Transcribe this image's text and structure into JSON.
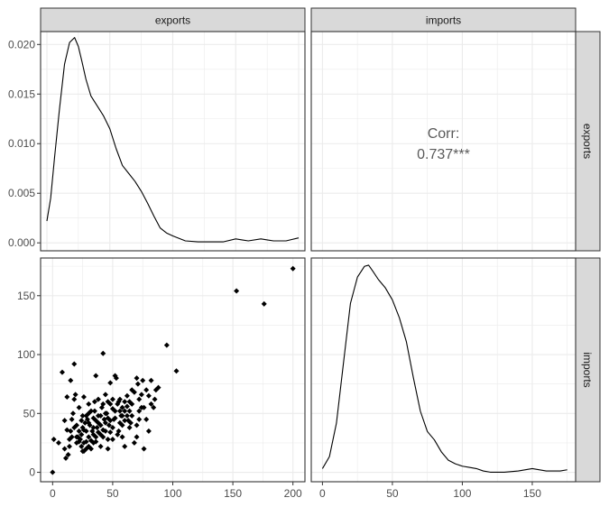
{
  "colors": {
    "strip_fill": "#d9d9d9",
    "panel_border": "#333333",
    "grid": "#ebebeb",
    "line": "#000000",
    "point": "#000000",
    "corr_text": "#595959"
  },
  "chart_data": {
    "type": "scatter",
    "title": "",
    "layout": "2x2 pairs matrix",
    "columns": [
      "exports",
      "imports"
    ],
    "rows": [
      "exports",
      "imports"
    ],
    "grid": true,
    "panels": {
      "exports_density": {
        "type": "line",
        "xlim": [
          -5,
          205
        ],
        "ylim": [
          -0.0008,
          0.0213
        ],
        "x_ticks": [
          0,
          50,
          100,
          150,
          200
        ],
        "y_ticks": [
          0,
          0.005,
          0.01,
          0.015,
          0.02
        ],
        "y_tick_labels": [
          "0.000",
          "0.005",
          "0.010",
          "0.015",
          "0.020"
        ],
        "x": [
          0,
          3,
          6,
          10,
          14,
          18,
          22,
          25,
          28,
          31,
          35,
          40,
          45,
          50,
          55,
          60,
          65,
          70,
          75,
          80,
          85,
          90,
          95,
          100,
          110,
          120,
          130,
          140,
          150,
          155,
          160,
          170,
          175,
          180,
          190,
          200
        ],
        "y": [
          0.0022,
          0.0045,
          0.0085,
          0.0135,
          0.018,
          0.0202,
          0.0207,
          0.0198,
          0.0182,
          0.0165,
          0.0148,
          0.0138,
          0.0128,
          0.0115,
          0.0095,
          0.0078,
          0.007,
          0.0062,
          0.0052,
          0.004,
          0.0027,
          0.0015,
          0.001,
          0.0007,
          0.0002,
          0.0001,
          0.0001,
          0.0001,
          0.0004,
          0.0003,
          0.0002,
          0.0004,
          0.0003,
          0.0002,
          0.0002,
          0.0005
        ]
      },
      "corr": {
        "label": "Corr:",
        "value": "0.737***"
      },
      "scatter": {
        "type": "scatter",
        "xlim": [
          -10,
          210
        ],
        "ylim": [
          -8,
          182
        ],
        "x_ticks": [
          0,
          50,
          100,
          150,
          200
        ],
        "y_ticks": [
          0,
          50,
          100,
          150
        ],
        "points": [
          [
            0,
            0
          ],
          [
            1,
            28
          ],
          [
            5,
            25
          ],
          [
            10,
            20
          ],
          [
            11,
            12
          ],
          [
            13,
            15
          ],
          [
            14,
            22
          ],
          [
            15,
            35
          ],
          [
            16,
            45
          ],
          [
            17,
            50
          ],
          [
            18,
            62
          ],
          [
            19,
            66
          ],
          [
            20,
            25
          ],
          [
            20,
            40
          ],
          [
            21,
            30
          ],
          [
            22,
            35
          ],
          [
            22,
            55
          ],
          [
            23,
            28
          ],
          [
            24,
            32
          ],
          [
            25,
            18
          ],
          [
            25,
            38
          ],
          [
            25,
            48
          ],
          [
            26,
            25
          ],
          [
            27,
            42
          ],
          [
            28,
            20
          ],
          [
            28,
            35
          ],
          [
            29,
            45
          ],
          [
            30,
            30
          ],
          [
            30,
            50
          ],
          [
            31,
            40
          ],
          [
            32,
            27
          ],
          [
            33,
            35
          ],
          [
            34,
            46
          ],
          [
            35,
            52
          ],
          [
            35,
            60
          ],
          [
            36,
            30
          ],
          [
            37,
            38
          ],
          [
            38,
            42
          ],
          [
            38,
            62
          ],
          [
            40,
            48
          ],
          [
            41,
            55
          ],
          [
            42,
            30
          ],
          [
            42,
            101
          ],
          [
            43,
            45
          ],
          [
            44,
            35
          ],
          [
            45,
            50
          ],
          [
            46,
            28
          ],
          [
            47,
            40
          ],
          [
            48,
            58
          ],
          [
            50,
            38
          ],
          [
            50,
            62
          ],
          [
            51,
            45
          ],
          [
            52,
            52
          ],
          [
            53,
            80
          ],
          [
            55,
            35
          ],
          [
            55,
            60
          ],
          [
            57,
            48
          ],
          [
            58,
            55
          ],
          [
            60,
            22
          ],
          [
            60,
            52
          ],
          [
            62,
            65
          ],
          [
            63,
            44
          ],
          [
            65,
            42
          ],
          [
            66,
            58
          ],
          [
            68,
            68
          ],
          [
            70,
            30
          ],
          [
            71,
            75
          ],
          [
            72,
            62
          ],
          [
            75,
            78
          ],
          [
            76,
            55
          ],
          [
            78,
            70
          ],
          [
            80,
            65
          ],
          [
            82,
            58
          ],
          [
            85,
            62
          ],
          [
            88,
            72
          ],
          [
            18,
            92
          ],
          [
            15,
            78
          ],
          [
            8,
            85
          ],
          [
            12,
            64
          ],
          [
            26,
            64
          ],
          [
            30,
            58
          ],
          [
            34,
            25
          ],
          [
            36,
            82
          ],
          [
            40,
            22
          ],
          [
            44,
            66
          ],
          [
            46,
            20
          ],
          [
            48,
            76
          ],
          [
            52,
            82
          ],
          [
            56,
            42
          ],
          [
            58,
            30
          ],
          [
            62,
            48
          ],
          [
            64,
            38
          ],
          [
            66,
            48
          ],
          [
            68,
            25
          ],
          [
            70,
            40
          ],
          [
            72,
            45
          ],
          [
            74,
            55
          ],
          [
            76,
            20
          ],
          [
            78,
            45
          ],
          [
            80,
            35
          ],
          [
            84,
            55
          ],
          [
            86,
            70
          ],
          [
            95,
            108
          ],
          [
            103,
            86
          ],
          [
            153,
            154
          ],
          [
            176,
            143
          ],
          [
            200,
            173
          ],
          [
            20,
            30
          ],
          [
            22,
            26
          ],
          [
            24,
            44
          ],
          [
            26,
            36
          ],
          [
            28,
            48
          ],
          [
            30,
            42
          ],
          [
            32,
            52
          ],
          [
            34,
            38
          ],
          [
            36,
            44
          ],
          [
            38,
            34
          ],
          [
            40,
            40
          ],
          [
            42,
            58
          ],
          [
            44,
            50
          ],
          [
            46,
            60
          ],
          [
            48,
            44
          ],
          [
            50,
            54
          ],
          [
            52,
            46
          ],
          [
            54,
            58
          ],
          [
            56,
            62
          ],
          [
            58,
            40
          ],
          [
            60,
            60
          ],
          [
            62,
            56
          ],
          [
            64,
            52
          ],
          [
            66,
            70
          ],
          [
            18,
            38
          ],
          [
            16,
            30
          ],
          [
            14,
            28
          ],
          [
            12,
            36
          ],
          [
            10,
            44
          ],
          [
            24,
            22
          ],
          [
            26,
            18
          ],
          [
            28,
            26
          ],
          [
            30,
            22
          ],
          [
            32,
            20
          ],
          [
            34,
            32
          ],
          [
            36,
            26
          ],
          [
            38,
            48
          ],
          [
            40,
            32
          ],
          [
            42,
            36
          ],
          [
            44,
            42
          ],
          [
            46,
            46
          ],
          [
            48,
            34
          ],
          [
            50,
            28
          ],
          [
            54,
            32
          ],
          [
            56,
            52
          ],
          [
            58,
            48
          ],
          [
            60,
            44
          ],
          [
            64,
            60
          ],
          [
            70,
            80
          ],
          [
            72,
            52
          ],
          [
            74,
            66
          ],
          [
            82,
            78
          ]
        ]
      },
      "imports_density": {
        "type": "line",
        "xlim": [
          -8,
          181
        ],
        "ylim": [
          -0.0007,
          0.018
        ],
        "x_ticks": [
          0,
          50,
          100,
          150
        ],
        "x": [
          0,
          5,
          10,
          15,
          20,
          25,
          30,
          33,
          36,
          40,
          45,
          50,
          55,
          60,
          65,
          70,
          75,
          80,
          85,
          90,
          95,
          100,
          105,
          110,
          115,
          120,
          125,
          130,
          140,
          150,
          160,
          170,
          175
        ],
        "y": [
          0.0004,
          0.0014,
          0.0042,
          0.0092,
          0.0142,
          0.0164,
          0.0173,
          0.0174,
          0.0169,
          0.0162,
          0.0155,
          0.0145,
          0.013,
          0.011,
          0.008,
          0.0052,
          0.0035,
          0.0028,
          0.0018,
          0.0011,
          0.0008,
          0.0006,
          0.0005,
          0.0004,
          0.0002,
          0.0001,
          0.0001,
          0.0001,
          0.0002,
          0.0004,
          0.0002,
          0.0002,
          0.0003
        ]
      }
    }
  },
  "strips": {
    "top_left": "exports",
    "top_right": "imports",
    "right_top": "exports",
    "right_bottom": "imports"
  }
}
